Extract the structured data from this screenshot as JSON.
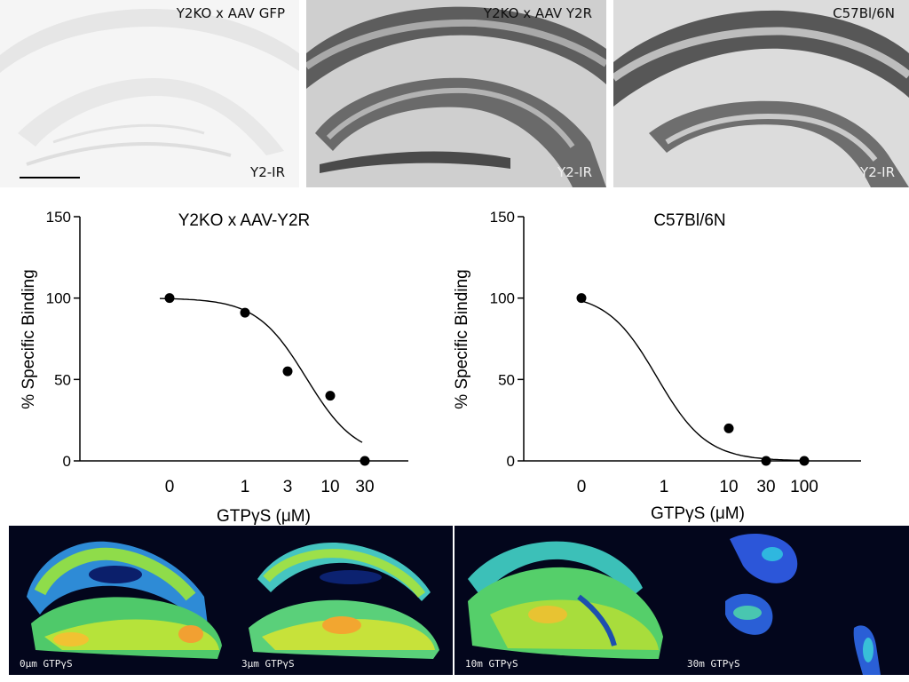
{
  "micrographs": [
    {
      "title": "Y2KO x AAV GFP",
      "corner_label": "Y2-IR",
      "tone": "light"
    },
    {
      "title": "Y2KO x AAV Y2R",
      "corner_label": "Y2-IR",
      "tone": "dark"
    },
    {
      "title": "C57Bl/6N",
      "corner_label": "Y2-IR",
      "tone": "medium"
    }
  ],
  "chart_data": [
    {
      "type": "scatter",
      "title": "Y2KO x AAV-Y2R",
      "xlabel": "GTPγS  (μM)",
      "ylabel": "% Specific Binding",
      "x_ticks": [
        "0",
        "1",
        "3",
        "10",
        "30"
      ],
      "y_ticks": [
        0,
        50,
        100,
        150
      ],
      "ylim": [
        0,
        150
      ],
      "grid": false,
      "points": [
        {
          "x": "0",
          "y": 100
        },
        {
          "x": "1",
          "y": 91
        },
        {
          "x": "3",
          "y": 55
        },
        {
          "x": "10",
          "y": 40
        },
        {
          "x": "30",
          "y": 0
        }
      ],
      "fit_curve": "sigmoidal"
    },
    {
      "type": "scatter",
      "title": "C57Bl/6N",
      "xlabel": "GTPγS  (μM)",
      "ylabel": "% Specific Binding",
      "x_ticks": [
        "0",
        "1",
        "10",
        "30",
        "100"
      ],
      "y_ticks": [
        0,
        50,
        100,
        150
      ],
      "ylim": [
        0,
        150
      ],
      "grid": false,
      "points": [
        {
          "x": "0",
          "y": 100
        },
        {
          "x": "10",
          "y": 20
        },
        {
          "x": "30",
          "y": 0
        },
        {
          "x": "100",
          "y": 0
        }
      ],
      "fit_curve": "sigmoidal"
    }
  ],
  "heatmaps": [
    {
      "label": "0μm GTPγS",
      "intensity": "high"
    },
    {
      "label": "3μm GTPγS",
      "intensity": "high"
    },
    {
      "label": "10m GTPγS",
      "intensity": "medium"
    },
    {
      "label": "30m GTPγS",
      "intensity": "low"
    }
  ],
  "colors": {
    "fit_line": "#000000",
    "marker": "#000000",
    "heatmap_background": "#03061c"
  }
}
